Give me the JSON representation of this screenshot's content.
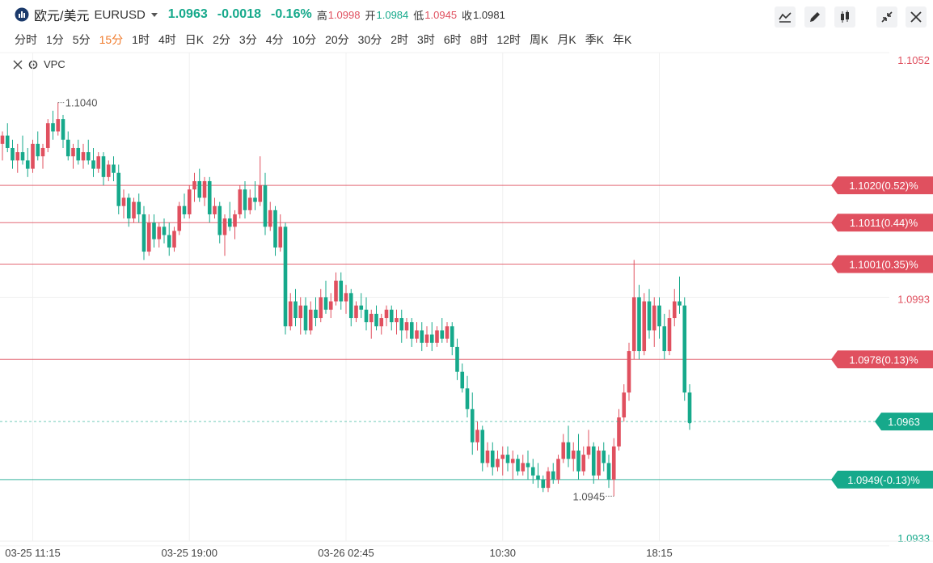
{
  "header": {
    "name": "欧元/美元",
    "symbol": "EURUSD",
    "price": "1.0963",
    "change": "-0.0018",
    "change_pct": "-0.16%",
    "stats": [
      {
        "label": "高",
        "value": "1.0998"
      },
      {
        "label": "开",
        "value": "1.0984"
      },
      {
        "label": "低",
        "value": "1.0945"
      },
      {
        "label": "收",
        "value": "1.0981"
      }
    ]
  },
  "timeframes": [
    "分时",
    "1分",
    "5分",
    "15分",
    "1时",
    "4时",
    "日K",
    "2分",
    "3分",
    "4分",
    "10分",
    "20分",
    "30分",
    "2时",
    "3时",
    "6时",
    "8时",
    "12时",
    "周K",
    "月K",
    "季K",
    "年K"
  ],
  "selected_timeframe": "15分",
  "chart_data": {
    "type": "candlestick",
    "indicator": "VPC",
    "up_color": "#e0505f",
    "down_color": "#16a98b",
    "ylim": [
      1.0932,
      1.1053
    ],
    "yticks": [
      1.1052,
      1.0993,
      1.0933
    ],
    "grid": true,
    "last_price": 1.0963,
    "high_mark": {
      "value": 1.104,
      "label": "1.1040"
    },
    "low_mark": {
      "value": 1.0945,
      "label": "1.0945"
    },
    "levels": [
      {
        "value": 1.102,
        "label": "1.1020(0.52)%",
        "color": "#e0505f"
      },
      {
        "value": 1.1011,
        "label": "1.1011(0.44)%",
        "color": "#e0505f"
      },
      {
        "value": 1.1001,
        "label": "1.1001(0.35)%",
        "color": "#e0505f"
      },
      {
        "value": 1.0978,
        "label": "1.0978(0.13)%",
        "color": "#e0505f"
      },
      {
        "value": 1.0949,
        "label": "1.0949(-0.13)%",
        "color": "#16a98b"
      }
    ],
    "categories": [
      null,
      null,
      null,
      null,
      null,
      null,
      "03-25 11:15",
      null,
      null,
      null,
      null,
      null,
      null,
      null,
      null,
      null,
      null,
      null,
      null,
      null,
      null,
      null,
      null,
      null,
      null,
      null,
      null,
      null,
      null,
      null,
      null,
      null,
      null,
      null,
      null,
      null,
      null,
      "03-25 19:00",
      null,
      null,
      null,
      null,
      null,
      null,
      null,
      null,
      null,
      null,
      null,
      null,
      null,
      null,
      null,
      null,
      null,
      null,
      null,
      null,
      null,
      null,
      null,
      null,
      null,
      null,
      null,
      null,
      null,
      null,
      "03-26 02:45",
      null,
      null,
      null,
      null,
      null,
      null,
      null,
      null,
      null,
      null,
      null,
      null,
      null,
      null,
      null,
      null,
      null,
      null,
      null,
      null,
      null,
      null,
      null,
      null,
      null,
      null,
      null,
      null,
      null,
      null,
      "10:30",
      null,
      null,
      null,
      null,
      null,
      null,
      null,
      null,
      null,
      null,
      null,
      null,
      null,
      null,
      null,
      null,
      null,
      null,
      null,
      null,
      null,
      null,
      null,
      null,
      null,
      null,
      null,
      null,
      null,
      null,
      "18:15",
      null,
      null,
      null,
      null,
      null,
      null
    ],
    "ohlc": [
      [
        1.103,
        1.1033,
        1.1026,
        1.1032
      ],
      [
        1.1032,
        1.1035,
        1.1028,
        1.1029
      ],
      [
        1.1029,
        1.1031,
        1.1024,
        1.1026
      ],
      [
        1.1026,
        1.103,
        1.1023,
        1.1028
      ],
      [
        1.1028,
        1.1032,
        1.1025,
        1.1026
      ],
      [
        1.1026,
        1.1029,
        1.1022,
        1.1024
      ],
      [
        1.1024,
        1.1031,
        1.1023,
        1.103
      ],
      [
        1.103,
        1.1033,
        1.1026,
        1.1027
      ],
      [
        1.1027,
        1.103,
        1.1024,
        1.1029
      ],
      [
        1.1029,
        1.1036,
        1.1028,
        1.1035
      ],
      [
        1.1035,
        1.1038,
        1.1031,
        1.1033
      ],
      [
        1.1033,
        1.104,
        1.1032,
        1.1036
      ],
      [
        1.1036,
        1.1037,
        1.1029,
        1.1031
      ],
      [
        1.1031,
        1.1033,
        1.1026,
        1.1027
      ],
      [
        1.1027,
        1.103,
        1.1024,
        1.1029
      ],
      [
        1.1029,
        1.1031,
        1.1025,
        1.1026
      ],
      [
        1.1026,
        1.103,
        1.1024,
        1.1028
      ],
      [
        1.1028,
        1.1031,
        1.1025,
        1.1026
      ],
      [
        1.1026,
        1.1029,
        1.1022,
        1.1024
      ],
      [
        1.1024,
        1.1028,
        1.1023,
        1.1027
      ],
      [
        1.1027,
        1.1028,
        1.102,
        1.1022
      ],
      [
        1.1022,
        1.1026,
        1.1021,
        1.1025
      ],
      [
        1.1025,
        1.1027,
        1.1021,
        1.1023
      ],
      [
        1.1023,
        1.1025,
        1.1013,
        1.1015
      ],
      [
        1.1015,
        1.1019,
        1.1012,
        1.1017
      ],
      [
        1.1017,
        1.1018,
        1.101,
        1.1012
      ],
      [
        1.1012,
        1.1017,
        1.1011,
        1.1016
      ],
      [
        1.1016,
        1.1018,
        1.1011,
        1.1013
      ],
      [
        1.1013,
        1.1015,
        1.1002,
        1.1004
      ],
      [
        1.1004,
        1.1013,
        1.1003,
        1.1011
      ],
      [
        1.1011,
        1.1013,
        1.1005,
        1.1007
      ],
      [
        1.1007,
        1.1011,
        1.1005,
        1.101
      ],
      [
        1.101,
        1.1012,
        1.1006,
        1.1008
      ],
      [
        1.1008,
        1.1011,
        1.1003,
        1.1005
      ],
      [
        1.1005,
        1.101,
        1.1004,
        1.1009
      ],
      [
        1.1009,
        1.1016,
        1.1008,
        1.1015
      ],
      [
        1.1015,
        1.1018,
        1.1012,
        1.1013
      ],
      [
        1.1013,
        1.102,
        1.1012,
        1.1019
      ],
      [
        1.1019,
        1.1023,
        1.1016,
        1.1021
      ],
      [
        1.1021,
        1.1024,
        1.1016,
        1.1017
      ],
      [
        1.1017,
        1.1022,
        1.1015,
        1.1021
      ],
      [
        1.1021,
        1.1022,
        1.1011,
        1.1013
      ],
      [
        1.1013,
        1.1017,
        1.1012,
        1.1015
      ],
      [
        1.1015,
        1.1016,
        1.1006,
        1.1008
      ],
      [
        1.1008,
        1.1013,
        1.1003,
        1.1012
      ],
      [
        1.1012,
        1.1016,
        1.1009,
        1.101
      ],
      [
        1.101,
        1.1014,
        1.1007,
        1.1013
      ],
      [
        1.1013,
        1.102,
        1.1012,
        1.1019
      ],
      [
        1.1019,
        1.1021,
        1.1012,
        1.1014
      ],
      [
        1.1014,
        1.1019,
        1.1013,
        1.1017
      ],
      [
        1.1017,
        1.1021,
        1.1014,
        1.1016
      ],
      [
        1.1016,
        1.1027,
        1.1015,
        1.102
      ],
      [
        1.102,
        1.1023,
        1.1008,
        1.101
      ],
      [
        1.101,
        1.1016,
        1.1009,
        1.1014
      ],
      [
        1.1014,
        1.1015,
        1.1003,
        1.1005
      ],
      [
        1.1005,
        1.1013,
        1.1004,
        1.101
      ],
      [
        1.101,
        1.1011,
        1.0984,
        1.0986
      ],
      [
        1.0986,
        1.0994,
        1.0985,
        1.0992
      ],
      [
        1.0992,
        1.0995,
        1.0986,
        1.0988
      ],
      [
        1.0988,
        1.0993,
        1.0984,
        1.0991
      ],
      [
        1.0991,
        1.0993,
        1.0984,
        1.0985
      ],
      [
        1.0985,
        1.0992,
        1.0984,
        1.099
      ],
      [
        1.099,
        1.0993,
        1.0986,
        1.0988
      ],
      [
        1.0988,
        1.0995,
        1.0987,
        1.0993
      ],
      [
        1.0993,
        1.0997,
        1.0989,
        1.099
      ],
      [
        1.099,
        1.0994,
        1.0988,
        1.0992
      ],
      [
        1.0992,
        1.0999,
        1.0991,
        1.0997
      ],
      [
        1.0997,
        1.0999,
        1.099,
        1.0992
      ],
      [
        1.0992,
        1.0996,
        1.0989,
        1.0994
      ],
      [
        1.0994,
        1.0995,
        1.0986,
        1.0988
      ],
      [
        1.0988,
        1.0992,
        1.0987,
        1.0991
      ],
      [
        1.0991,
        1.0994,
        1.0988,
        1.099
      ],
      [
        1.099,
        1.0993,
        1.0985,
        1.0987
      ],
      [
        1.0987,
        1.099,
        1.0983,
        1.0989
      ],
      [
        1.0989,
        1.0991,
        1.0985,
        1.0986
      ],
      [
        1.0986,
        1.0989,
        1.0984,
        1.0988
      ],
      [
        1.0988,
        1.0991,
        1.0986,
        1.099
      ],
      [
        1.099,
        1.0991,
        1.0985,
        1.0987
      ],
      [
        1.0987,
        1.099,
        1.0984,
        1.0988
      ],
      [
        1.0988,
        1.099,
        1.0982,
        1.0985
      ],
      [
        1.0985,
        1.0988,
        1.0983,
        1.0987
      ],
      [
        1.0987,
        1.0988,
        1.0981,
        1.0983
      ],
      [
        1.0983,
        1.0987,
        1.0982,
        1.0985
      ],
      [
        1.0985,
        1.0987,
        1.098,
        1.0982
      ],
      [
        1.0982,
        1.0986,
        1.0981,
        1.0984
      ],
      [
        1.0984,
        1.0987,
        1.098,
        1.0982
      ],
      [
        1.0982,
        1.0986,
        1.0981,
        1.0985
      ],
      [
        1.0985,
        1.0988,
        1.0982,
        1.0983
      ],
      [
        1.0983,
        1.0987,
        1.0982,
        1.0986
      ],
      [
        1.0986,
        1.0987,
        1.0979,
        1.0981
      ],
      [
        1.0981,
        1.0983,
        1.0973,
        1.0975
      ],
      [
        1.0975,
        1.0977,
        1.097,
        1.0971
      ],
      [
        1.0971,
        1.0974,
        1.0964,
        1.0966
      ],
      [
        1.0966,
        1.097,
        1.0955,
        1.0958
      ],
      [
        1.0958,
        1.0963,
        1.0956,
        1.0961
      ],
      [
        1.0961,
        1.0962,
        1.0951,
        1.0953
      ],
      [
        1.0953,
        1.0958,
        1.0952,
        1.0956
      ],
      [
        1.0956,
        1.0958,
        1.095,
        1.0952
      ],
      [
        1.0952,
        1.0956,
        1.0951,
        1.0954
      ],
      [
        1.0954,
        1.0957,
        1.095,
        1.0955
      ],
      [
        1.0955,
        1.0957,
        1.0951,
        1.0953
      ],
      [
        1.0953,
        1.0956,
        1.0949,
        1.0954
      ],
      [
        1.0954,
        1.0955,
        1.095,
        1.0951
      ],
      [
        1.0951,
        1.0955,
        1.095,
        1.0953
      ],
      [
        1.0953,
        1.0956,
        1.0949,
        1.0952
      ],
      [
        1.0952,
        1.0954,
        1.0948,
        1.095
      ],
      [
        1.095,
        1.0953,
        1.0947,
        1.0949
      ],
      [
        1.0949,
        1.095,
        1.0946,
        1.0947
      ],
      [
        1.0947,
        1.0952,
        1.0946,
        1.0951
      ],
      [
        1.0951,
        1.0953,
        1.0948,
        1.0949
      ],
      [
        1.0949,
        1.0955,
        1.0948,
        1.0954
      ],
      [
        1.0954,
        1.096,
        1.0953,
        1.0958
      ],
      [
        1.0958,
        1.0962,
        1.0952,
        1.0954
      ],
      [
        1.0954,
        1.0958,
        1.0951,
        1.0956
      ],
      [
        1.0956,
        1.096,
        1.0949,
        1.0951
      ],
      [
        1.0951,
        1.0957,
        1.095,
        1.0955
      ],
      [
        1.0955,
        1.0961,
        1.0954,
        1.0957
      ],
      [
        1.0957,
        1.0958,
        1.0948,
        1.095
      ],
      [
        1.095,
        1.0957,
        1.0949,
        1.0956
      ],
      [
        1.0956,
        1.0958,
        1.0951,
        1.0953
      ],
      [
        1.0953,
        1.0955,
        1.0947,
        1.0949
      ],
      [
        1.0949,
        1.0959,
        1.0945,
        1.0957
      ],
      [
        1.0957,
        1.0966,
        1.0956,
        1.0964
      ],
      [
        1.0964,
        1.0972,
        1.0963,
        1.097
      ],
      [
        1.097,
        1.0982,
        1.0968,
        1.098
      ],
      [
        1.098,
        1.1002,
        1.0978,
        1.0993
      ],
      [
        1.0993,
        1.0996,
        1.0978,
        1.098
      ],
      [
        1.098,
        1.0994,
        1.0979,
        1.0992
      ],
      [
        1.0992,
        1.0995,
        1.0983,
        1.0985
      ],
      [
        1.0985,
        1.0993,
        1.0981,
        1.0991
      ],
      [
        1.0991,
        1.0993,
        1.0983,
        1.0986
      ],
      [
        1.0986,
        1.0989,
        1.0978,
        1.098
      ],
      [
        1.098,
        1.099,
        1.0979,
        1.0988
      ],
      [
        1.0988,
        1.0995,
        1.0986,
        1.0992
      ],
      [
        1.0992,
        1.0998,
        1.0989,
        1.0991
      ],
      [
        1.0991,
        1.0993,
        1.0968,
        1.097
      ],
      [
        1.097,
        1.0972,
        1.0961,
        1.0963
      ]
    ]
  }
}
